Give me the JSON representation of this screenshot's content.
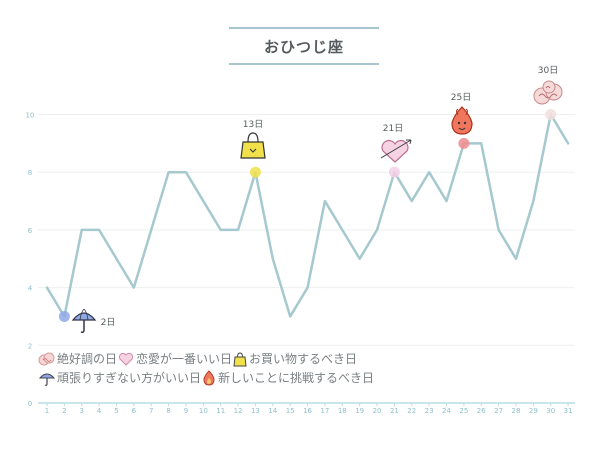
{
  "title": "おひつじ座",
  "colors": {
    "line": "#a6c8cf",
    "grid": "#eef0f1",
    "axis": "#b8dde3",
    "tick_text": "#8fc0cb",
    "marker_umbrella": "#8fa8e6",
    "marker_shopping": "#f0e04a",
    "marker_love": "#f2d0e6",
    "marker_challenge": "#f08c8c",
    "marker_luck": "#f2dede"
  },
  "chart_data": {
    "type": "line",
    "x": [
      1,
      2,
      3,
      4,
      5,
      6,
      7,
      8,
      9,
      10,
      11,
      12,
      13,
      14,
      15,
      16,
      17,
      18,
      19,
      20,
      21,
      22,
      23,
      24,
      25,
      26,
      27,
      28,
      29,
      30,
      31
    ],
    "values": [
      4,
      3,
      6,
      6,
      5,
      4,
      6,
      8,
      8,
      7,
      6,
      6,
      8,
      5,
      3,
      4,
      7,
      6,
      5,
      6,
      8,
      7,
      8,
      7,
      9,
      9,
      6,
      5,
      7,
      10,
      9
    ],
    "ylim": [
      0,
      11
    ],
    "yticks": [
      0,
      2,
      4,
      6,
      8,
      10
    ],
    "xticks": [
      "1",
      "2",
      "3",
      "4",
      "5",
      "6",
      "7",
      "8",
      "9",
      "10",
      "11",
      "12",
      "13",
      "14",
      "15",
      "16",
      "17",
      "18",
      "19",
      "20",
      "21",
      "22",
      "23",
      "24",
      "25",
      "26",
      "27",
      "28",
      "29",
      "30",
      "31"
    ],
    "annotations": [
      {
        "day": 2,
        "label": "2日",
        "icon": "umbrella-icon",
        "category": "頑張りすぎない方がいい日"
      },
      {
        "day": 13,
        "label": "13日",
        "icon": "shopping-bag-icon",
        "category": "お買い物するべき日"
      },
      {
        "day": 21,
        "label": "21日",
        "icon": "heart-icon",
        "category": "恋愛が一番いい日"
      },
      {
        "day": 25,
        "label": "25日",
        "icon": "flame-icon",
        "category": "新しいことに挑戦するべき日"
      },
      {
        "day": 30,
        "label": "30日",
        "icon": "lucky-cloud-icon",
        "category": "絶好調の日"
      }
    ]
  },
  "legend": [
    {
      "icon": "lucky-cloud-icon",
      "label": "絶好調の日"
    },
    {
      "icon": "heart-icon",
      "label": "恋愛が一番いい日"
    },
    {
      "icon": "shopping-bag-icon",
      "label": "お買い物するべき日"
    },
    {
      "icon": "umbrella-icon",
      "label": "頑張りすぎない方がいい日"
    },
    {
      "icon": "flame-icon",
      "label": "新しいことに挑戦するべき日"
    }
  ]
}
